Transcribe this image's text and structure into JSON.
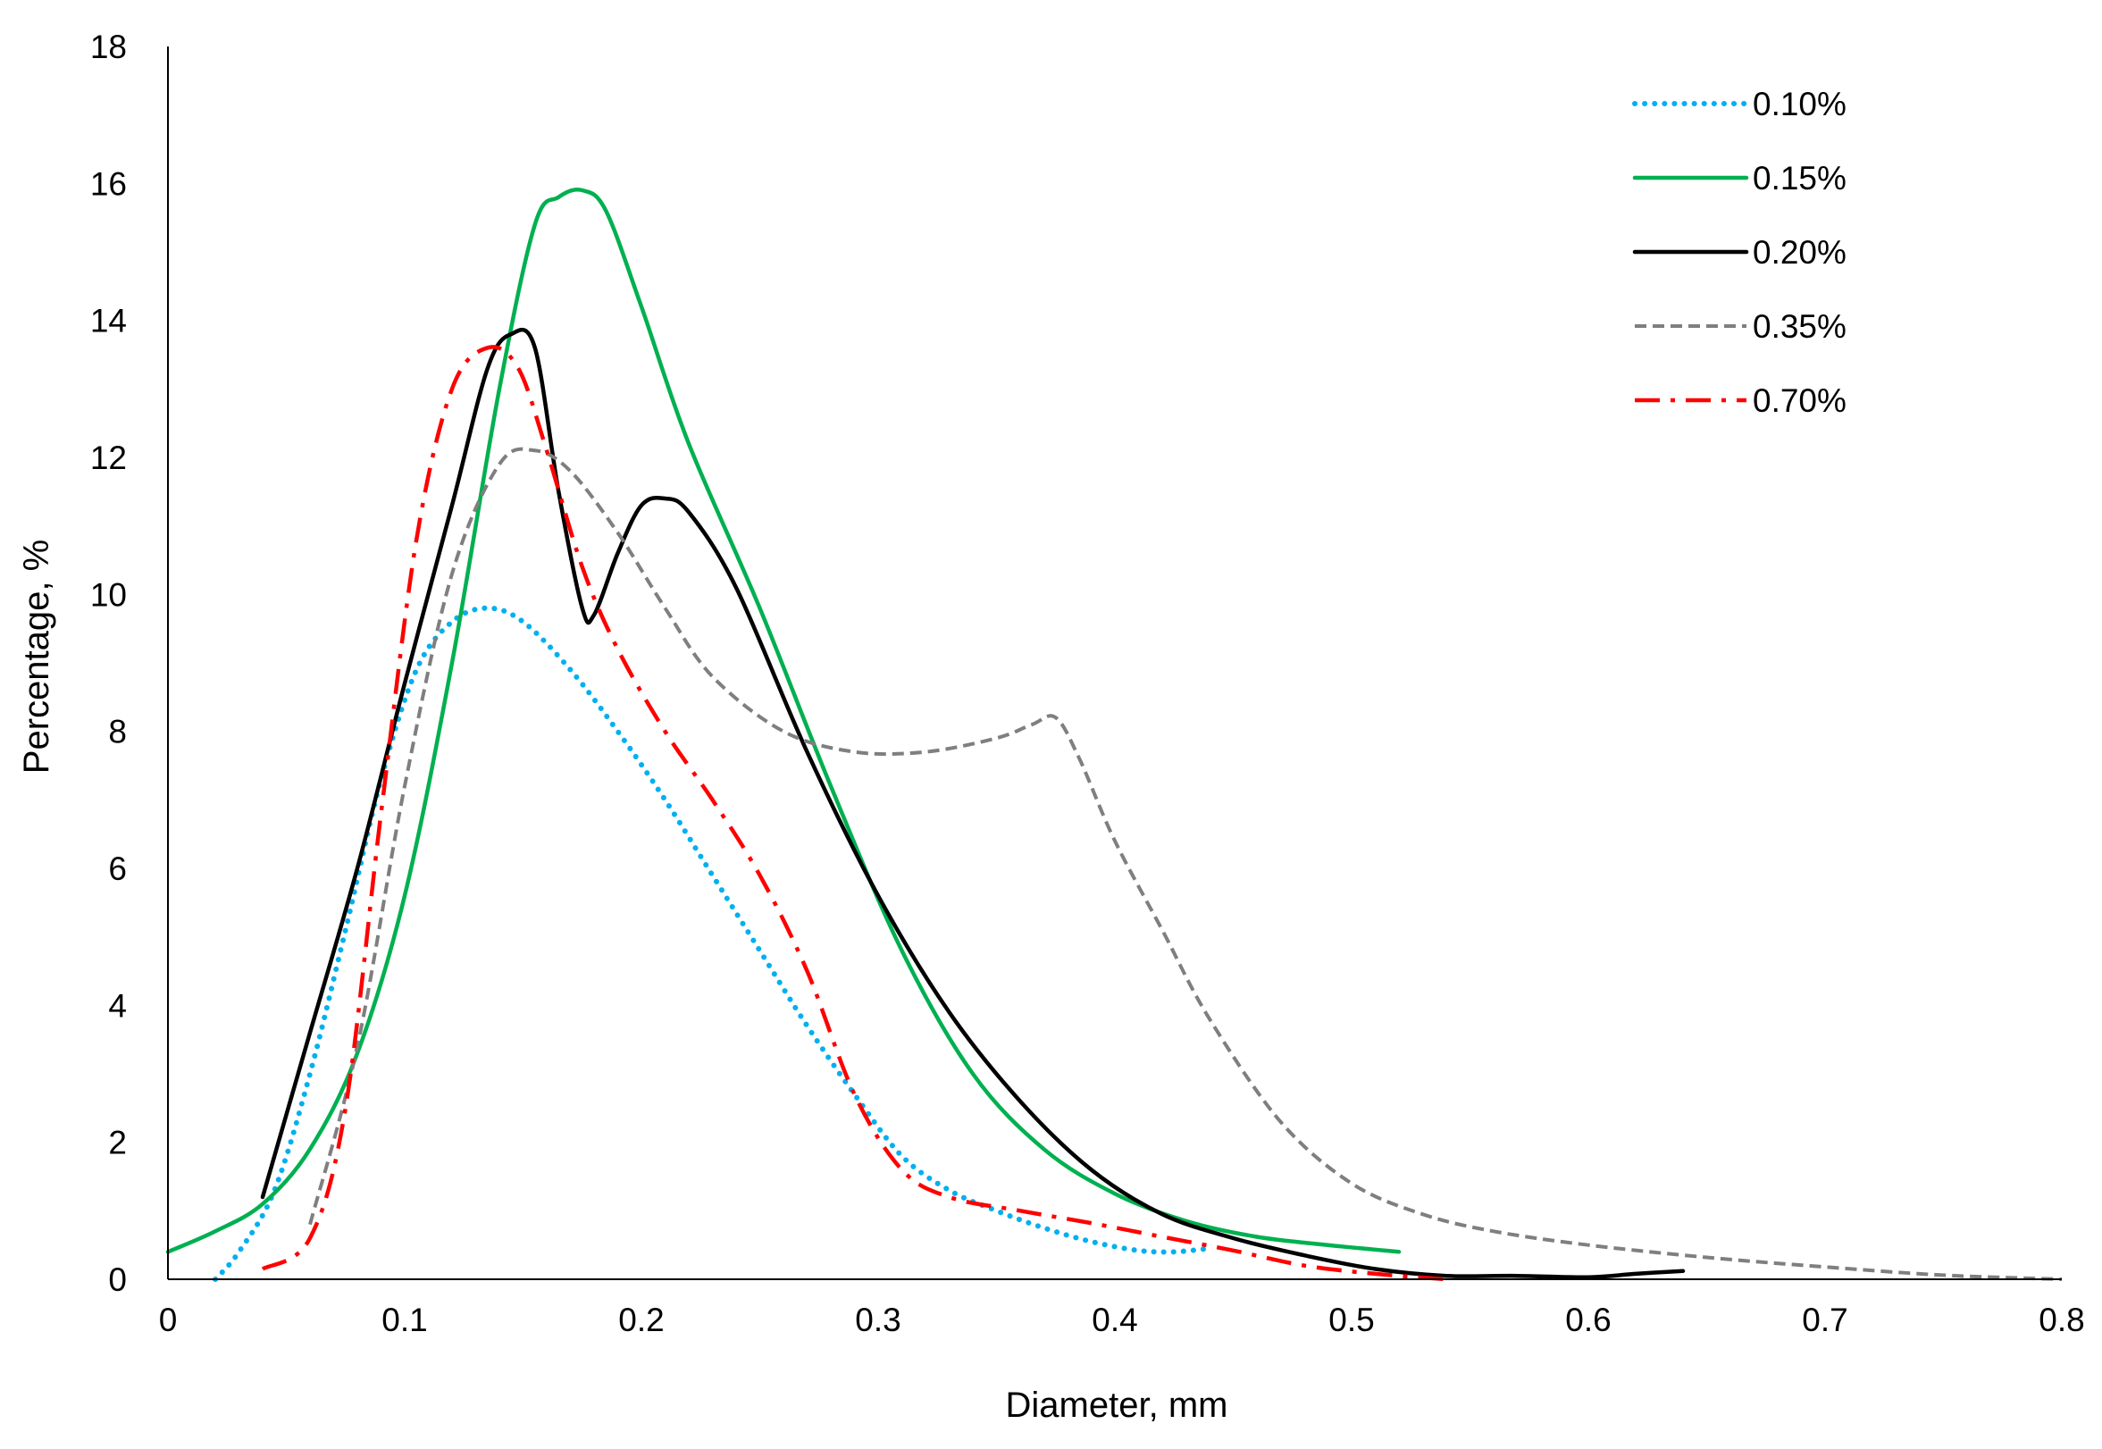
{
  "chart_data": {
    "type": "line",
    "title": "",
    "xlabel": "Diameter, mm",
    "ylabel": "Percentage, %",
    "xlim": [
      0,
      0.8
    ],
    "ylim": [
      0,
      18
    ],
    "grid": false,
    "legend_position": "top-right",
    "x_ticks": [
      "0",
      "0.1",
      "0.2",
      "0.3",
      "0.4",
      "0.5",
      "0.6",
      "0.7",
      "0.8"
    ],
    "y_ticks": [
      "0",
      "2",
      "4",
      "6",
      "8",
      "10",
      "12",
      "14",
      "16",
      "18"
    ],
    "series": [
      {
        "name": "0.10%",
        "color": "#00B0F0",
        "style": "dotted",
        "x": [
          0.02,
          0.03,
          0.045,
          0.06,
          0.075,
          0.09,
          0.105,
          0.12,
          0.135,
          0.15,
          0.17,
          0.19,
          0.21,
          0.23,
          0.25,
          0.27,
          0.29,
          0.31,
          0.33,
          0.35,
          0.37,
          0.39,
          0.41,
          0.425,
          0.44
        ],
        "y": [
          0.0,
          0.4,
          1.3,
          3.0,
          5.1,
          7.3,
          8.9,
          9.6,
          9.8,
          9.6,
          8.9,
          8.0,
          7.0,
          5.9,
          4.8,
          3.7,
          2.7,
          1.8,
          1.3,
          1.0,
          0.75,
          0.55,
          0.42,
          0.4,
          0.45
        ]
      },
      {
        "name": "0.15%",
        "color": "#00B050",
        "style": "solid",
        "x": [
          0.0,
          0.02,
          0.04,
          0.06,
          0.08,
          0.1,
          0.12,
          0.14,
          0.155,
          0.165,
          0.175,
          0.185,
          0.2,
          0.22,
          0.25,
          0.28,
          0.31,
          0.34,
          0.37,
          0.4,
          0.43,
          0.46,
          0.49,
          0.52
        ],
        "y": [
          0.4,
          0.7,
          1.1,
          1.9,
          3.3,
          5.6,
          9.0,
          13.0,
          15.4,
          15.8,
          15.9,
          15.6,
          14.2,
          12.2,
          9.8,
          7.2,
          4.8,
          3.0,
          1.9,
          1.25,
          0.85,
          0.62,
          0.5,
          0.4
        ]
      },
      {
        "name": "0.20%",
        "color": "#000000",
        "style": "solid",
        "x": [
          0.04,
          0.06,
          0.08,
          0.1,
          0.12,
          0.135,
          0.145,
          0.155,
          0.165,
          0.175,
          0.18,
          0.19,
          0.2,
          0.21,
          0.22,
          0.24,
          0.27,
          0.3,
          0.33,
          0.36,
          0.39,
          0.42,
          0.45,
          0.48,
          0.51,
          0.54,
          0.57,
          0.6,
          0.62,
          0.64
        ],
        "y": [
          1.2,
          3.6,
          6.0,
          8.7,
          11.3,
          13.3,
          13.8,
          13.6,
          11.5,
          9.8,
          9.7,
          10.6,
          11.3,
          11.4,
          11.2,
          10.1,
          7.7,
          5.6,
          3.9,
          2.6,
          1.6,
          0.95,
          0.6,
          0.35,
          0.15,
          0.05,
          0.05,
          0.03,
          0.08,
          0.12
        ]
      },
      {
        "name": "0.35%",
        "color": "#7F7F7F",
        "style": "dashed",
        "x": [
          0.06,
          0.08,
          0.1,
          0.12,
          0.14,
          0.155,
          0.17,
          0.19,
          0.21,
          0.23,
          0.26,
          0.29,
          0.32,
          0.35,
          0.365,
          0.375,
          0.385,
          0.4,
          0.42,
          0.44,
          0.47,
          0.5,
          0.53,
          0.56,
          0.6,
          0.65,
          0.7,
          0.75,
          0.8
        ],
        "y": [
          0.8,
          3.4,
          7.2,
          10.3,
          11.9,
          12.1,
          11.8,
          10.9,
          9.8,
          8.8,
          8.0,
          7.7,
          7.7,
          7.9,
          8.1,
          8.2,
          7.6,
          6.4,
          5.1,
          3.8,
          2.3,
          1.4,
          0.95,
          0.7,
          0.5,
          0.32,
          0.18,
          0.06,
          0.0
        ]
      },
      {
        "name": "0.70%",
        "color": "#FF0000",
        "style": "dashdot",
        "x": [
          0.04,
          0.06,
          0.075,
          0.09,
          0.105,
          0.12,
          0.135,
          0.148,
          0.16,
          0.175,
          0.19,
          0.21,
          0.23,
          0.25,
          0.27,
          0.29,
          0.31,
          0.33,
          0.36,
          0.39,
          0.42,
          0.45,
          0.48,
          0.51,
          0.54
        ],
        "y": [
          0.15,
          0.6,
          2.5,
          6.8,
          10.8,
          13.0,
          13.6,
          13.3,
          12.1,
          10.4,
          9.2,
          8.0,
          7.0,
          5.9,
          4.5,
          2.7,
          1.6,
          1.2,
          1.0,
          0.82,
          0.62,
          0.42,
          0.2,
          0.08,
          0.0
        ]
      }
    ]
  }
}
